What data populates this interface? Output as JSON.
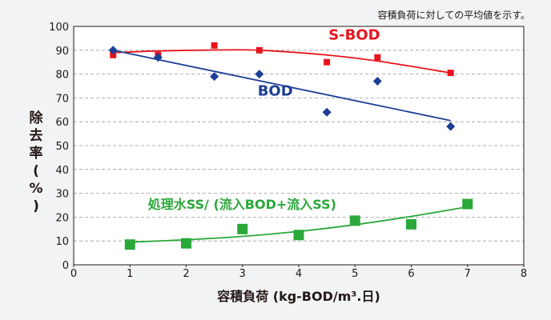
{
  "note": "容積負荷に対しての平均値を示す。",
  "chart_data": {
    "type": "scatter",
    "xlabel": "容積負荷 (kg-BOD/m³.日)",
    "ylabel": [
      "除",
      "去",
      "率",
      "(",
      "%",
      ")"
    ],
    "xlim": [
      0,
      8
    ],
    "ylim": [
      0,
      100
    ],
    "x_ticks": [
      "0",
      "1",
      "2",
      "3",
      "4",
      "5",
      "6",
      "7",
      "8"
    ],
    "y_ticks": [
      "0",
      "10",
      "20",
      "30",
      "40",
      "50",
      "60",
      "70",
      "80",
      "90",
      "100"
    ],
    "grid": "horizontal dashed",
    "series": [
      {
        "name": "S-BOD",
        "color": "#e8141d",
        "marker": "small-square",
        "points": [
          [
            0.7,
            88
          ],
          [
            1.5,
            88
          ],
          [
            2.5,
            92
          ],
          [
            3.3,
            90
          ],
          [
            4.5,
            85
          ],
          [
            5.4,
            87
          ],
          [
            6.7,
            80.5
          ]
        ],
        "trend": [
          [
            0.7,
            89
          ],
          [
            1.5,
            89.7
          ],
          [
            2.5,
            90.1
          ],
          [
            3.3,
            90
          ],
          [
            4.5,
            88
          ],
          [
            5.4,
            85.5
          ],
          [
            6.7,
            80.5
          ]
        ]
      },
      {
        "name": "BOD",
        "color": "#1c3f95",
        "marker": "diamond",
        "points": [
          [
            0.7,
            90
          ],
          [
            1.5,
            87
          ],
          [
            2.5,
            79
          ],
          [
            3.3,
            80
          ],
          [
            4.5,
            64
          ],
          [
            5.4,
            77
          ],
          [
            6.7,
            58
          ]
        ],
        "trend": [
          [
            0.7,
            90
          ],
          [
            6.7,
            60.5
          ]
        ]
      },
      {
        "name": "処理水SS/ (流入BOD+流入SS)",
        "color": "#2aa83a",
        "marker": "square",
        "points": [
          [
            1,
            8.5
          ],
          [
            2,
            9
          ],
          [
            3,
            15
          ],
          [
            4,
            12.5
          ],
          [
            5,
            18.5
          ],
          [
            6,
            17
          ],
          [
            7,
            25.5
          ]
        ],
        "trend": [
          [
            1,
            9.5
          ],
          [
            2,
            10.5
          ],
          [
            3,
            11.9
          ],
          [
            4,
            14
          ],
          [
            5,
            16.8
          ],
          [
            6,
            20.3
          ],
          [
            7,
            24.3
          ]
        ]
      }
    ]
  }
}
